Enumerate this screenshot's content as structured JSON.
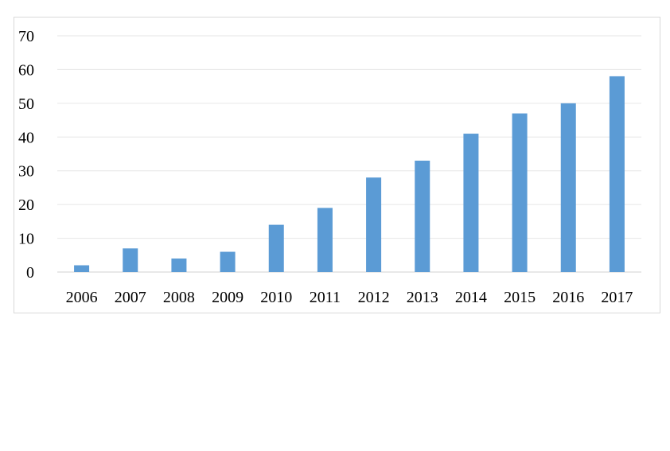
{
  "chart_data": {
    "type": "bar",
    "categories": [
      "2006",
      "2007",
      "2008",
      "2009",
      "2010",
      "2011",
      "2012",
      "2013",
      "2014",
      "2015",
      "2016",
      "2017"
    ],
    "series": [
      {
        "values": [
          2,
          7,
          4,
          6,
          14,
          19,
          28,
          33,
          41,
          47,
          50,
          58
        ]
      }
    ],
    "y_ticks": [
      "0",
      "10",
      "20",
      "30",
      "40",
      "50",
      "60",
      "70"
    ],
    "ylim": [
      0,
      70
    ],
    "title": "",
    "xlabel": "",
    "ylabel": "",
    "grid": "horizontal",
    "legend": "none",
    "bar_color": "#5b9bd5"
  }
}
